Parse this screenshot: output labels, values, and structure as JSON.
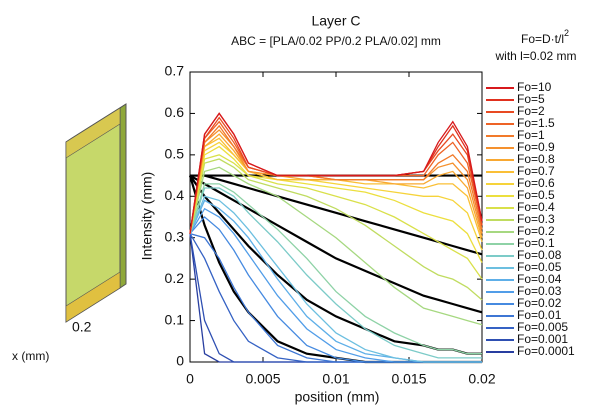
{
  "chart_data": {
    "type": "line",
    "title": "Layer C",
    "subtitle": "ABC = [PLA/0.02 PP/0.2 PLA/0.02] mm",
    "note": {
      "text": "Fo=D·t/l",
      "superscript": "2"
    },
    "note2": "with l=0.02 mm",
    "x_label": "position (mm)",
    "y_label": "Intensity (mm)",
    "slab_label": "0.2",
    "slab_axis_label": "x (mm)",
    "xlim": [
      0,
      0.02
    ],
    "xticks": [
      0,
      0.005,
      0.01,
      0.015,
      0.02
    ],
    "ylim": [
      0,
      0.7
    ],
    "yticks": [
      0,
      0.1,
      0.2,
      0.3,
      0.4,
      0.5,
      0.6,
      0.7
    ],
    "legend": "right",
    "x": [
      0,
      0.001,
      0.002,
      0.003,
      0.004,
      0.006,
      0.008,
      0.01,
      0.012,
      0.014,
      0.016,
      0.017,
      0.018,
      0.019,
      0.02
    ],
    "series": [
      {
        "name": "Fo=10",
        "color": "#d7191c",
        "values": [
          0.31,
          0.55,
          0.6,
          0.55,
          0.48,
          0.45,
          0.45,
          0.45,
          0.45,
          0.45,
          0.46,
          0.53,
          0.58,
          0.52,
          0.34
        ]
      },
      {
        "name": "Fo=5",
        "color": "#e0301e",
        "values": [
          0.31,
          0.55,
          0.6,
          0.55,
          0.48,
          0.45,
          0.45,
          0.45,
          0.45,
          0.45,
          0.46,
          0.52,
          0.57,
          0.51,
          0.34
        ]
      },
      {
        "name": "Fo=2",
        "color": "#e84a22",
        "values": [
          0.31,
          0.54,
          0.59,
          0.54,
          0.47,
          0.45,
          0.45,
          0.45,
          0.45,
          0.45,
          0.46,
          0.51,
          0.55,
          0.5,
          0.33
        ]
      },
      {
        "name": "Fo=1.5",
        "color": "#ee6326",
        "values": [
          0.31,
          0.54,
          0.58,
          0.53,
          0.47,
          0.45,
          0.45,
          0.45,
          0.45,
          0.45,
          0.45,
          0.5,
          0.53,
          0.48,
          0.33
        ]
      },
      {
        "name": "Fo=1",
        "color": "#f27a2a",
        "values": [
          0.31,
          0.53,
          0.57,
          0.52,
          0.47,
          0.45,
          0.45,
          0.44,
          0.44,
          0.44,
          0.44,
          0.48,
          0.5,
          0.46,
          0.32
        ]
      },
      {
        "name": "Fo=0.9",
        "color": "#f5912e",
        "values": [
          0.31,
          0.53,
          0.56,
          0.52,
          0.46,
          0.45,
          0.45,
          0.44,
          0.44,
          0.44,
          0.44,
          0.47,
          0.48,
          0.44,
          0.31
        ]
      },
      {
        "name": "Fo=0.8",
        "color": "#f8a832",
        "values": [
          0.31,
          0.52,
          0.55,
          0.51,
          0.46,
          0.45,
          0.44,
          0.44,
          0.44,
          0.43,
          0.43,
          0.45,
          0.46,
          0.42,
          0.3
        ]
      },
      {
        "name": "Fo=0.7",
        "color": "#fabf36",
        "values": [
          0.31,
          0.52,
          0.54,
          0.5,
          0.46,
          0.44,
          0.44,
          0.44,
          0.43,
          0.43,
          0.42,
          0.43,
          0.43,
          0.4,
          0.29
        ]
      },
      {
        "name": "Fo=0.6",
        "color": "#f6d33a",
        "values": [
          0.31,
          0.51,
          0.53,
          0.5,
          0.46,
          0.44,
          0.44,
          0.43,
          0.42,
          0.41,
          0.4,
          0.4,
          0.39,
          0.36,
          0.27
        ]
      },
      {
        "name": "Fo=0.5",
        "color": "#ecdf3e",
        "values": [
          0.31,
          0.5,
          0.52,
          0.49,
          0.45,
          0.44,
          0.43,
          0.42,
          0.41,
          0.39,
          0.36,
          0.35,
          0.34,
          0.31,
          0.24
        ]
      },
      {
        "name": "Fo=0.4",
        "color": "#d9e04a",
        "values": [
          0.31,
          0.49,
          0.5,
          0.48,
          0.45,
          0.43,
          0.42,
          0.4,
          0.38,
          0.35,
          0.31,
          0.29,
          0.27,
          0.25,
          0.2
        ]
      },
      {
        "name": "Fo=0.3",
        "color": "#c0dc60",
        "values": [
          0.31,
          0.48,
          0.49,
          0.47,
          0.44,
          0.42,
          0.4,
          0.37,
          0.33,
          0.28,
          0.23,
          0.21,
          0.2,
          0.18,
          0.15
        ]
      },
      {
        "name": "Fo=0.2",
        "color": "#a6d880",
        "values": [
          0.31,
          0.46,
          0.47,
          0.45,
          0.43,
          0.4,
          0.35,
          0.3,
          0.24,
          0.18,
          0.13,
          0.12,
          0.11,
          0.1,
          0.09
        ]
      },
      {
        "name": "Fo=0.1",
        "color": "#8ed2a6",
        "values": [
          0.31,
          0.43,
          0.43,
          0.41,
          0.38,
          0.32,
          0.25,
          0.17,
          0.11,
          0.07,
          0.04,
          0.03,
          0.03,
          0.02,
          0.02
        ]
      },
      {
        "name": "Fo=0.08",
        "color": "#7ccbc8",
        "values": [
          0.31,
          0.42,
          0.42,
          0.4,
          0.36,
          0.29,
          0.21,
          0.14,
          0.08,
          0.04,
          0.02,
          0.01,
          0.01,
          0.01,
          0.01
        ]
      },
      {
        "name": "Fo=0.05",
        "color": "#6cbfe0",
        "values": [
          0.31,
          0.4,
          0.39,
          0.36,
          0.32,
          0.23,
          0.14,
          0.07,
          0.03,
          0.01,
          0,
          0,
          0,
          0,
          0
        ]
      },
      {
        "name": "Fo=0.04",
        "color": "#5eafe8",
        "values": [
          0.31,
          0.39,
          0.37,
          0.34,
          0.3,
          0.2,
          0.11,
          0.05,
          0.02,
          0.01,
          0,
          0,
          0,
          0,
          0
        ]
      },
      {
        "name": "Fo=0.03",
        "color": "#519de8",
        "values": [
          0.31,
          0.37,
          0.35,
          0.31,
          0.26,
          0.16,
          0.08,
          0.03,
          0.01,
          0,
          0,
          0,
          0,
          0,
          0
        ]
      },
      {
        "name": "Fo=0.02",
        "color": "#468ae0",
        "values": [
          0.31,
          0.35,
          0.32,
          0.27,
          0.21,
          0.11,
          0.04,
          0.01,
          0,
          0,
          0,
          0,
          0,
          0,
          0
        ]
      },
      {
        "name": "Fo=0.01",
        "color": "#3d76d4",
        "values": [
          0.31,
          0.3,
          0.25,
          0.18,
          0.12,
          0.04,
          0.01,
          0,
          0,
          0,
          0,
          0,
          0,
          0,
          0
        ]
      },
      {
        "name": "Fo=0.005",
        "color": "#3562c4",
        "values": [
          0.31,
          0.25,
          0.17,
          0.1,
          0.05,
          0.01,
          0,
          0,
          0,
          0,
          0,
          0,
          0,
          0,
          0
        ]
      },
      {
        "name": "Fo=0.001",
        "color": "#2e4fb2",
        "values": [
          0.31,
          0.1,
          0.02,
          0,
          0,
          0,
          0,
          0,
          0,
          0,
          0,
          0,
          0,
          0,
          0
        ]
      },
      {
        "name": "Fo=0.0001",
        "color": "#283ea0",
        "values": [
          0.31,
          0.02,
          0,
          0,
          0,
          0,
          0,
          0,
          0,
          0,
          0,
          0,
          0,
          0,
          0
        ]
      }
    ],
    "black_curves": [
      {
        "color": "#000000",
        "values": [
          0.45,
          0.45,
          0.45,
          0.45,
          0.45,
          0.45,
          0.45,
          0.45,
          0.45,
          0.45,
          0.45,
          0.45,
          0.45,
          0.45,
          0.45
        ]
      },
      {
        "color": "#000000",
        "values": [
          0.45,
          0.45,
          0.44,
          0.43,
          0.42,
          0.4,
          0.38,
          0.36,
          0.34,
          0.32,
          0.3,
          0.29,
          0.28,
          0.27,
          0.26
        ]
      },
      {
        "color": "#000000",
        "values": [
          0.45,
          0.43,
          0.41,
          0.39,
          0.37,
          0.33,
          0.29,
          0.25,
          0.22,
          0.19,
          0.16,
          0.15,
          0.14,
          0.13,
          0.12
        ]
      },
      {
        "color": "#000000",
        "values": [
          0.45,
          0.4,
          0.36,
          0.32,
          0.28,
          0.21,
          0.15,
          0.11,
          0.08,
          0.05,
          0.04,
          0.03,
          0.03,
          0.02,
          0.02
        ]
      },
      {
        "color": "#000000",
        "values": [
          0.45,
          0.33,
          0.24,
          0.17,
          0.12,
          0.05,
          0.02,
          0.01,
          0,
          0,
          0,
          0,
          0,
          0,
          0
        ]
      }
    ]
  }
}
